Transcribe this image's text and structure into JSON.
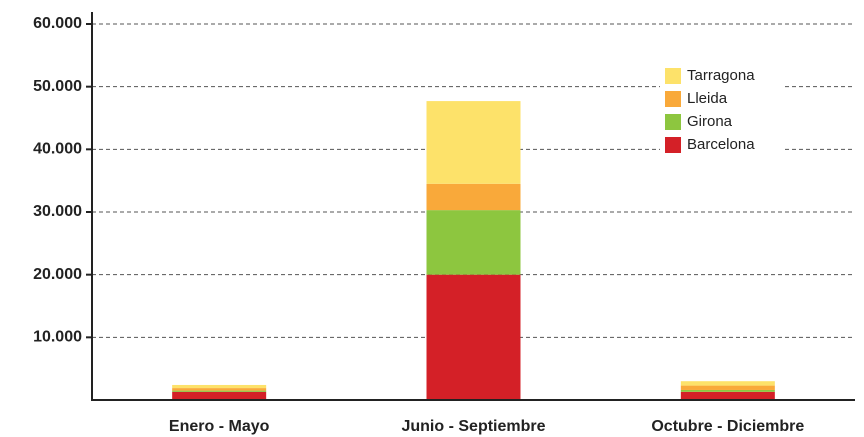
{
  "chart_data": {
    "type": "stacked_bar",
    "categories": [
      "Enero - Mayo",
      "Junio - Septiembre",
      "Octubre - Diciembre"
    ],
    "series": [
      {
        "name": "Barcelona",
        "color": "#d42027",
        "values": [
          1300,
          20000,
          1300
        ]
      },
      {
        "name": "Girona",
        "color": "#8dc63f",
        "values": [
          200,
          10300,
          300
        ]
      },
      {
        "name": "Lleida",
        "color": "#f9a93a",
        "values": [
          400,
          4200,
          700
        ]
      },
      {
        "name": "Tarragona",
        "color": "#fde26a",
        "values": [
          500,
          13200,
          700
        ]
      }
    ],
    "ylim": [
      0,
      60000
    ],
    "yticks": [
      {
        "value": 10000,
        "label": "10.000"
      },
      {
        "value": 20000,
        "label": "20.000"
      },
      {
        "value": 30000,
        "label": "30.000"
      },
      {
        "value": 40000,
        "label": "40.000"
      },
      {
        "value": 50000,
        "label": "50.000"
      },
      {
        "value": 60000,
        "label": "60.000"
      }
    ],
    "grid": true,
    "legend": "upper right"
  }
}
